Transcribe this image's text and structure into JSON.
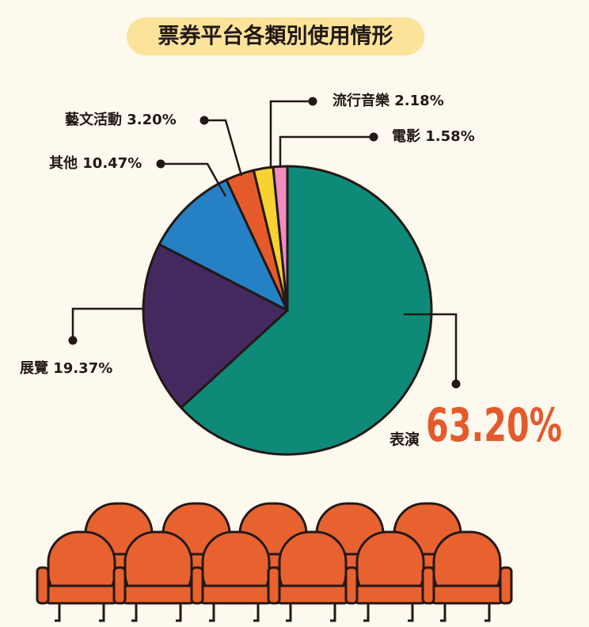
{
  "chart_data": {
    "type": "pie",
    "title": "票券平台各類別使用情形",
    "categories": [
      "表演",
      "展覽",
      "其他",
      "藝文活動",
      "流行音樂",
      "電影"
    ],
    "values": [
      63.2,
      19.37,
      10.47,
      3.2,
      2.18,
      1.58
    ],
    "value_labels": [
      "63.20%",
      "19.37%",
      "10.47%",
      "3.20%",
      "2.18%",
      "1.58%"
    ],
    "colors": [
      "#0e8a78",
      "#44295f",
      "#2581c4",
      "#e55a2b",
      "#f7d230",
      "#f08dbd"
    ]
  }
}
